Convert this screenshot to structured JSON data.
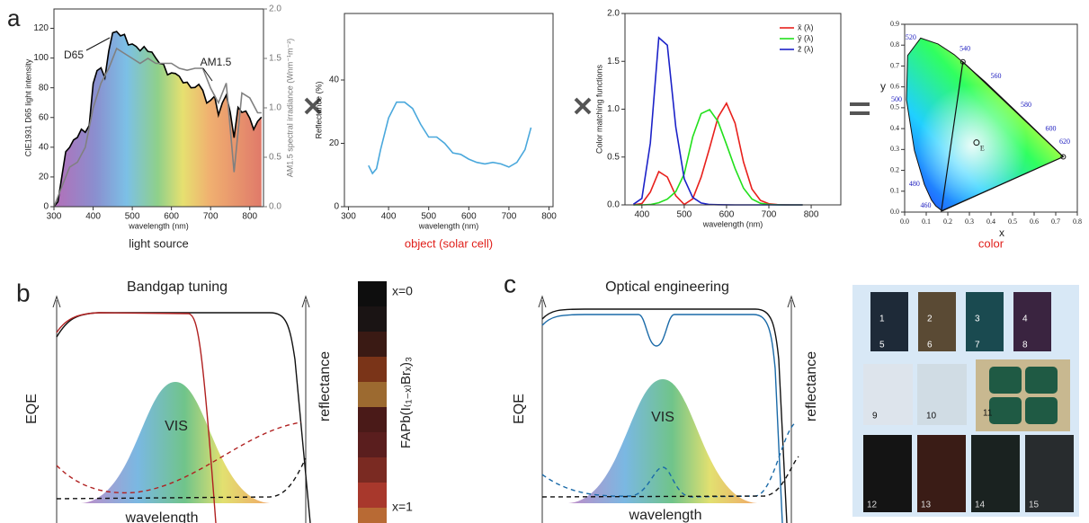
{
  "panel_labels": [
    "a",
    "b",
    "c"
  ],
  "chart_data": [
    {
      "type": "line",
      "xlabel": "wavelength (nm)",
      "ylabel": "CIE1931 D65 light intensity",
      "y2label": "AM1.5 spectral irradiance (Wnm⁻¹m⁻²)",
      "caption": "light source",
      "xlim": [
        300,
        835
      ],
      "xticks": [
        300,
        400,
        500,
        600,
        700,
        800
      ],
      "ylim": [
        0,
        133
      ],
      "yticks": [
        0,
        20,
        40,
        60,
        80,
        100,
        120
      ],
      "y2lim": [
        0,
        2
      ],
      "y2ticks": [
        {
          "value": 0,
          "label": "0.0"
        },
        0.5,
        {
          "value": 1,
          "label": "1.0"
        },
        1.5,
        {
          "value": 2,
          "label": "2.0"
        }
      ],
      "series": [
        {
          "name": "D65",
          "color": "#000000",
          "fill": "spectrum",
          "x": [
            300,
            310,
            320,
            330,
            340,
            350,
            360,
            370,
            380,
            390,
            400,
            410,
            420,
            430,
            440,
            450,
            460,
            470,
            480,
            490,
            500,
            510,
            520,
            530,
            540,
            550,
            560,
            570,
            580,
            590,
            600,
            610,
            620,
            630,
            640,
            650,
            660,
            670,
            680,
            690,
            700,
            710,
            720,
            730,
            740,
            750,
            760,
            770,
            780,
            790,
            800,
            810,
            820,
            830
          ],
          "values": [
            0.03,
            3.3,
            20,
            37,
            39.9,
            44.9,
            46.6,
            52.1,
            50,
            54.6,
            82.8,
            91.5,
            93.4,
            86.7,
            104.9,
            117,
            117.8,
            114.9,
            115.9,
            108.8,
            109.4,
            107.8,
            104.8,
            107.7,
            104.4,
            104,
            100,
            96.3,
            95.8,
            88.7,
            90,
            89.6,
            87.7,
            83.3,
            83.7,
            80,
            80.2,
            82.3,
            78.3,
            69.7,
            71.6,
            74.3,
            61.6,
            69.9,
            75.1,
            63.6,
            46.4,
            66.8,
            63.4,
            64.3,
            59.5,
            52,
            57.4,
            60.3
          ]
        },
        {
          "name": "AM1.5",
          "color": "#808080",
          "axis": "y2",
          "x": [
            300,
            320,
            340,
            360,
            380,
            400,
            420,
            440,
            460,
            480,
            500,
            520,
            540,
            560,
            580,
            600,
            620,
            640,
            660,
            680,
            700,
            720,
            740,
            760,
            780,
            800,
            820,
            830
          ],
          "values": [
            0,
            0.2,
            0.4,
            0.45,
            0.6,
            1.0,
            1.25,
            1.4,
            1.6,
            1.55,
            1.5,
            1.45,
            1.5,
            1.45,
            1.45,
            1.45,
            1.4,
            1.38,
            1.4,
            1.4,
            1.2,
            1.05,
            1.25,
            0.35,
            1.15,
            1.1,
            0.95,
            0.95
          ]
        }
      ]
    },
    {
      "type": "line",
      "xlabel": "wavelength (nm)",
      "ylabel": "Reflectance (%)",
      "caption": "object (solar cell)",
      "caption_color": "#e0201b",
      "xlim": [
        290,
        810
      ],
      "xticks": [
        300,
        400,
        500,
        600,
        700,
        800
      ],
      "ylim": [
        0,
        61
      ],
      "yticks": [
        0,
        20,
        40
      ],
      "series": [
        {
          "color": "#4aa8dc",
          "x": [
            350,
            360,
            370,
            380,
            400,
            420,
            440,
            460,
            480,
            500,
            520,
            540,
            560,
            580,
            600,
            620,
            640,
            660,
            680,
            700,
            720,
            740,
            755
          ],
          "values": [
            13,
            10.5,
            12,
            18,
            28,
            33,
            33,
            31,
            26,
            22,
            22,
            20,
            17,
            16.5,
            15,
            14,
            13.5,
            14,
            13.5,
            12.5,
            14,
            18,
            25
          ]
        }
      ]
    },
    {
      "type": "line",
      "xlabel": "wavelength (nm)",
      "ylabel": "Color matching functions",
      "legend": "upper right",
      "xlim": [
        360,
        870
      ],
      "xticks": [
        400,
        500,
        600,
        700,
        800
      ],
      "ylim": [
        0,
        2
      ],
      "yticks": [
        {
          "value": 0,
          "label": "0.0"
        },
        0.5,
        {
          "value": 1,
          "label": "1.0"
        },
        1.5,
        {
          "value": 2,
          "label": "2.0"
        }
      ],
      "x": [
        380,
        400,
        420,
        440,
        460,
        480,
        500,
        520,
        540,
        560,
        580,
        600,
        620,
        640,
        660,
        680,
        700,
        720,
        740,
        760,
        780
      ],
      "series": [
        {
          "name": "x̄ (λ)",
          "color": "#e8201c",
          "values": [
            0.001,
            0.014,
            0.134,
            0.348,
            0.291,
            0.096,
            0.005,
            0.063,
            0.29,
            0.595,
            0.916,
            1.062,
            0.854,
            0.448,
            0.165,
            0.047,
            0.011,
            0.003,
            0.001,
            0,
            0
          ]
        },
        {
          "name": "ȳ (λ)",
          "color": "#22e01c",
          "values": [
            0,
            0.0004,
            0.004,
            0.023,
            0.06,
            0.139,
            0.323,
            0.71,
            0.954,
            0.995,
            0.87,
            0.631,
            0.381,
            0.175,
            0.061,
            0.017,
            0.004,
            0.001,
            0,
            0,
            0
          ]
        },
        {
          "name": "z̄ (λ)",
          "color": "#1c22c8",
          "values": [
            0.007,
            0.068,
            0.646,
            1.747,
            1.669,
            0.813,
            0.272,
            0.078,
            0.02,
            0.004,
            0.002,
            0.001,
            0,
            0,
            0,
            0,
            0,
            0,
            0,
            0,
            0
          ]
        }
      ]
    },
    {
      "type": "chromaticity",
      "xlabel": "x",
      "ylabel": "y",
      "caption": "color",
      "caption_color": "#e0201b",
      "xlim": [
        0,
        0.8
      ],
      "xticks": [
        {
          "value": 0,
          "label": "0.0"
        },
        0.1,
        0.2,
        0.3,
        0.4,
        0.5,
        0.6,
        0.7,
        0.8
      ],
      "ylim": [
        0,
        0.9
      ],
      "yticks": [
        {
          "value": 0,
          "label": "0.0"
        },
        0.1,
        0.2,
        0.3,
        0.4,
        0.5,
        0.6,
        0.7,
        0.8,
        0.9
      ],
      "locus": {
        "x": [
          0.1741,
          0.144,
          0.1241,
          0.0913,
          0.0454,
          0.0082,
          0.0139,
          0.0743,
          0.1547,
          0.2296,
          0.3731,
          0.5125,
          0.627,
          0.6915,
          0.7347
        ],
        "y": [
          0.005,
          0.0297,
          0.0578,
          0.1327,
          0.295,
          0.5384,
          0.7502,
          0.8338,
          0.8059,
          0.7543,
          0.6245,
          0.4866,
          0.3725,
          0.3083,
          0.2653
        ],
        "labels": [
          null,
          "460",
          null,
          "480",
          null,
          "500",
          null,
          "520",
          null,
          "540",
          "560",
          "580",
          "600",
          "620",
          null
        ]
      },
      "triangle": {
        "x": [
          0.17,
          0.27,
          0.735
        ],
        "y": [
          0.005,
          0.72,
          0.265
        ]
      },
      "white_point": {
        "x": 0.333,
        "y": 0.333,
        "label": "E"
      }
    }
  ],
  "panel_b": {
    "title": "Bandgap tuning",
    "ylabel": "EQE",
    "y2label": "reflectance",
    "band": "VIS",
    "xlabel": "wavelength",
    "strip_top": "x=0",
    "strip_formula": "FAPb(I₍₁₋ₓ₎Brₓ)₃",
    "strip_bottom": "x=1"
  },
  "panel_c": {
    "title": "Optical engineering",
    "ylabel": "EQE",
    "y2label": "reflectance",
    "band": "VIS",
    "xlabel": "wavelength"
  },
  "photos": {
    "labels": [
      "1",
      "2",
      "3",
      "4",
      "5",
      "6",
      "7",
      "8",
      "9",
      "10",
      "11",
      "12",
      "13",
      "14",
      "15"
    ]
  }
}
